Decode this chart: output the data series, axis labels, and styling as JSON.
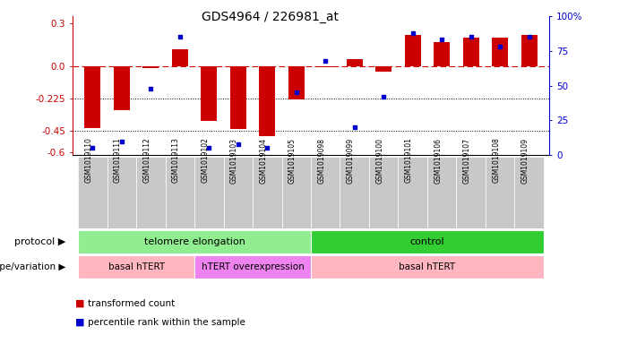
{
  "title": "GDS4964 / 226981_at",
  "samples": [
    "GSM1019110",
    "GSM1019111",
    "GSM1019112",
    "GSM1019113",
    "GSM1019102",
    "GSM1019103",
    "GSM1019104",
    "GSM1019105",
    "GSM1019098",
    "GSM1019099",
    "GSM1019100",
    "GSM1019101",
    "GSM1019106",
    "GSM1019107",
    "GSM1019108",
    "GSM1019109"
  ],
  "red_bars": [
    -0.43,
    -0.31,
    -0.01,
    0.12,
    -0.38,
    -0.44,
    -0.49,
    -0.23,
    -0.005,
    0.05,
    -0.04,
    0.22,
    0.17,
    0.2,
    0.2,
    0.22
  ],
  "blue_dots_pct": [
    5,
    10,
    48,
    85,
    5,
    8,
    5,
    45,
    68,
    20,
    42,
    88,
    83,
    85,
    78,
    85
  ],
  "ylim_left": [
    -0.62,
    0.35
  ],
  "yticks_left": [
    0.3,
    0.0,
    -0.225,
    -0.45,
    -0.6
  ],
  "yticks_right": [
    100,
    75,
    50,
    25,
    0
  ],
  "hlines": [
    0.0,
    -0.225,
    -0.45
  ],
  "red_color": "#CC0000",
  "blue_color": "#0000CC",
  "bar_width": 0.55,
  "protocol_groups": [
    {
      "label": "telomere elongation",
      "start": 0,
      "end": 8,
      "color": "#90EE90"
    },
    {
      "label": "control",
      "start": 8,
      "end": 16,
      "color": "#32CD32"
    }
  ],
  "genotype_groups": [
    {
      "label": "basal hTERT",
      "start": 0,
      "end": 4,
      "color": "#FFB6C1"
    },
    {
      "label": "hTERT overexpression",
      "start": 4,
      "end": 8,
      "color": "#EE82EE"
    },
    {
      "label": "basal hTERT",
      "start": 8,
      "end": 16,
      "color": "#FFB6C1"
    }
  ],
  "label_protocol": "protocol",
  "label_genotype": "genotype/variation",
  "legend_red": "transformed count",
  "legend_blue": "percentile rank within the sample"
}
